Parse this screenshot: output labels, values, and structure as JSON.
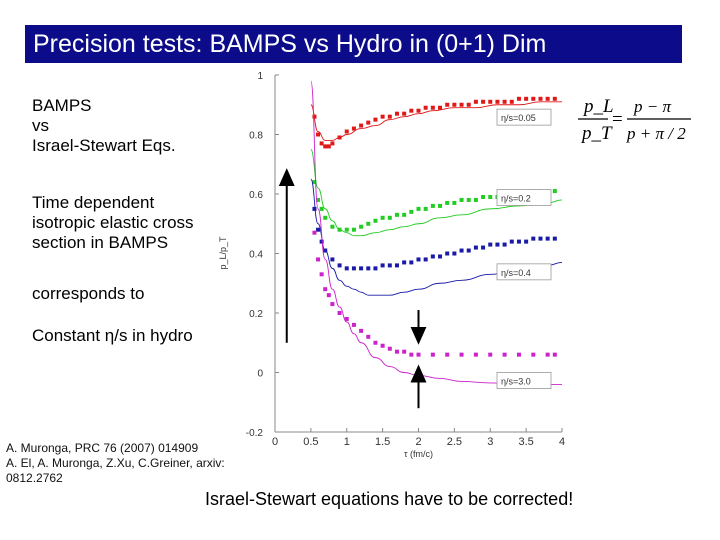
{
  "title": "Precision tests: BAMPS vs Hydro in (0+1) Dim",
  "side_text": {
    "bamps": [
      "BAMPS",
      "vs",
      "Israel-Stewart Eqs."
    ],
    "time_dependent": [
      "Time dependent",
      "isotropic elastic cross",
      "section in BAMPS"
    ],
    "corresponds": "corresponds to",
    "constant": "Constant η/s in hydro"
  },
  "references": [
    "A. Muronga, PRC 76 (2007) 014909",
    "A. El, A. Muronga, Z.Xu, C.Greiner, arxiv:",
    "0812.2762"
  ],
  "conclusion": "Israel-Stewart equations have to be corrected!",
  "formula": {
    "lhs_num": "p_L",
    "lhs_den": "p_T",
    "rhs_num": "p − π",
    "rhs_den": "p + π / 2"
  },
  "colors": {
    "title_bg": "#0c0c8a",
    "red": "#e01818",
    "green": "#22cc22",
    "blue": "#1a1aa8",
    "magenta": "#cc22cc"
  },
  "icons": [
    "up-arrow-icon",
    "down-arrow-icon"
  ],
  "chart_data": {
    "type": "scatter",
    "xlabel": "τ (fm/c)",
    "ylabel": "p_L/p_T",
    "xlim": [
      0,
      4
    ],
    "ylim": [
      -0.2,
      1
    ],
    "xticks": [
      "0",
      "0.5",
      "1",
      "1.5",
      "2",
      "2.5",
      "3",
      "3.5",
      "4"
    ],
    "yticks": [
      "1",
      "0.8",
      "0.6",
      "0.4",
      "0.2",
      "0",
      "-0.2"
    ],
    "grid": false,
    "series": [
      {
        "name": "η/s=0.05",
        "color": "#e01818",
        "bamps": {
          "x": [
            0.55,
            0.6,
            0.65,
            0.7,
            0.75,
            0.8,
            0.9,
            1.0,
            1.1,
            1.2,
            1.3,
            1.4,
            1.5,
            1.6,
            1.7,
            1.8,
            1.9,
            2.0,
            2.1,
            2.2,
            2.3,
            2.4,
            2.5,
            2.6,
            2.7,
            2.8,
            2.9,
            3.0,
            3.1,
            3.2,
            3.3,
            3.4,
            3.5,
            3.6,
            3.7,
            3.8,
            3.9
          ],
          "y": [
            0.86,
            0.8,
            0.77,
            0.76,
            0.76,
            0.77,
            0.79,
            0.81,
            0.82,
            0.83,
            0.84,
            0.85,
            0.86,
            0.86,
            0.87,
            0.87,
            0.88,
            0.88,
            0.89,
            0.89,
            0.89,
            0.9,
            0.9,
            0.9,
            0.9,
            0.91,
            0.91,
            0.91,
            0.91,
            0.91,
            0.91,
            0.92,
            0.92,
            0.92,
            0.92,
            0.92,
            0.92
          ]
        },
        "hydro": {
          "x": [
            0.5,
            0.6,
            0.7,
            0.8,
            0.9,
            1.0,
            1.2,
            1.4,
            1.6,
            1.8,
            2.0,
            2.2,
            2.5,
            2.8,
            3.1,
            3.4,
            3.7,
            4.0
          ],
          "y": [
            0.9,
            0.81,
            0.78,
            0.78,
            0.79,
            0.8,
            0.82,
            0.83,
            0.85,
            0.86,
            0.87,
            0.88,
            0.89,
            0.89,
            0.9,
            0.9,
            0.91,
            0.91
          ]
        }
      },
      {
        "name": "η/s=0.2",
        "color": "#22cc22",
        "bamps": {
          "x": [
            0.55,
            0.6,
            0.65,
            0.7,
            0.8,
            0.9,
            1.0,
            1.1,
            1.2,
            1.3,
            1.4,
            1.5,
            1.6,
            1.7,
            1.8,
            1.9,
            2.0,
            2.1,
            2.2,
            2.3,
            2.4,
            2.5,
            2.6,
            2.7,
            2.8,
            2.9,
            3.0,
            3.1,
            3.2,
            3.3,
            3.4,
            3.5,
            3.6,
            3.7,
            3.8,
            3.9
          ],
          "y": [
            0.64,
            0.58,
            0.55,
            0.52,
            0.49,
            0.48,
            0.48,
            0.48,
            0.49,
            0.5,
            0.51,
            0.52,
            0.52,
            0.53,
            0.53,
            0.54,
            0.55,
            0.55,
            0.56,
            0.56,
            0.57,
            0.57,
            0.58,
            0.58,
            0.58,
            0.59,
            0.59,
            0.59,
            0.6,
            0.6,
            0.6,
            0.6,
            0.61,
            0.61,
            0.61,
            0.61
          ]
        },
        "hydro": {
          "x": [
            0.5,
            0.6,
            0.7,
            0.8,
            0.9,
            1.0,
            1.1,
            1.2,
            1.4,
            1.6,
            1.8,
            2.0,
            2.3,
            2.6,
            3.0,
            3.4,
            3.8,
            4.0
          ],
          "y": [
            0.75,
            0.62,
            0.55,
            0.51,
            0.48,
            0.47,
            0.46,
            0.46,
            0.47,
            0.48,
            0.49,
            0.5,
            0.52,
            0.53,
            0.55,
            0.56,
            0.57,
            0.58
          ]
        }
      },
      {
        "name": "η/s=0.4",
        "color": "#1a1aa8",
        "bamps": {
          "x": [
            0.55,
            0.6,
            0.65,
            0.7,
            0.8,
            0.9,
            1.0,
            1.1,
            1.2,
            1.3,
            1.4,
            1.5,
            1.6,
            1.7,
            1.8,
            1.9,
            2.0,
            2.1,
            2.2,
            2.3,
            2.4,
            2.5,
            2.6,
            2.7,
            2.8,
            2.9,
            3.0,
            3.1,
            3.2,
            3.3,
            3.4,
            3.5,
            3.6,
            3.7,
            3.8,
            3.9
          ],
          "y": [
            0.55,
            0.48,
            0.44,
            0.41,
            0.38,
            0.36,
            0.35,
            0.35,
            0.35,
            0.35,
            0.35,
            0.36,
            0.36,
            0.36,
            0.37,
            0.37,
            0.38,
            0.38,
            0.39,
            0.39,
            0.4,
            0.4,
            0.41,
            0.41,
            0.42,
            0.42,
            0.43,
            0.43,
            0.43,
            0.44,
            0.44,
            0.44,
            0.45,
            0.45,
            0.45,
            0.45
          ]
        },
        "hydro": {
          "x": [
            0.5,
            0.6,
            0.7,
            0.8,
            0.9,
            1.0,
            1.1,
            1.2,
            1.3,
            1.4,
            1.6,
            1.8,
            2.0,
            2.3,
            2.6,
            3.0,
            3.4,
            3.8,
            4.0
          ],
          "y": [
            0.65,
            0.5,
            0.41,
            0.35,
            0.31,
            0.29,
            0.28,
            0.27,
            0.26,
            0.26,
            0.26,
            0.27,
            0.28,
            0.3,
            0.31,
            0.33,
            0.35,
            0.36,
            0.37
          ]
        }
      },
      {
        "name": "η/s=3.0",
        "color": "#cc22cc",
        "bamps": {
          "x": [
            0.55,
            0.6,
            0.65,
            0.7,
            0.75,
            0.8,
            0.9,
            1.0,
            1.1,
            1.2,
            1.3,
            1.4,
            1.5,
            1.6,
            1.7,
            1.8,
            1.9,
            2.0,
            2.2,
            2.4,
            2.6,
            2.8,
            3.0,
            3.2,
            3.4,
            3.6,
            3.8,
            3.9
          ],
          "y": [
            0.47,
            0.38,
            0.33,
            0.28,
            0.26,
            0.23,
            0.2,
            0.18,
            0.16,
            0.14,
            0.12,
            0.1,
            0.09,
            0.08,
            0.07,
            0.07,
            0.06,
            0.06,
            0.06,
            0.06,
            0.06,
            0.06,
            0.06,
            0.06,
            0.06,
            0.06,
            0.06,
            0.06
          ]
        },
        "hydro": {
          "x": [
            0.5,
            0.6,
            0.7,
            0.8,
            0.9,
            1.0,
            1.1,
            1.2,
            1.4,
            1.6,
            1.8,
            2.0,
            2.3,
            2.6,
            3.0,
            3.4,
            3.8,
            4.0
          ],
          "y": [
            0.98,
            0.55,
            0.38,
            0.28,
            0.22,
            0.17,
            0.13,
            0.1,
            0.05,
            0.02,
            0.0,
            -0.01,
            -0.02,
            -0.03,
            -0.035,
            -0.04,
            -0.04,
            -0.04
          ]
        }
      }
    ],
    "arrows": [
      {
        "x": 1.0,
        "y_from": 0.1,
        "y_to": 0.66,
        "direction": "up"
      },
      {
        "x": 2.0,
        "y_from": 0.21,
        "y_to": 0.12,
        "direction": "down"
      },
      {
        "x": 2.0,
        "y_from": -0.12,
        "y_to": 0.0,
        "direction": "up"
      }
    ]
  }
}
